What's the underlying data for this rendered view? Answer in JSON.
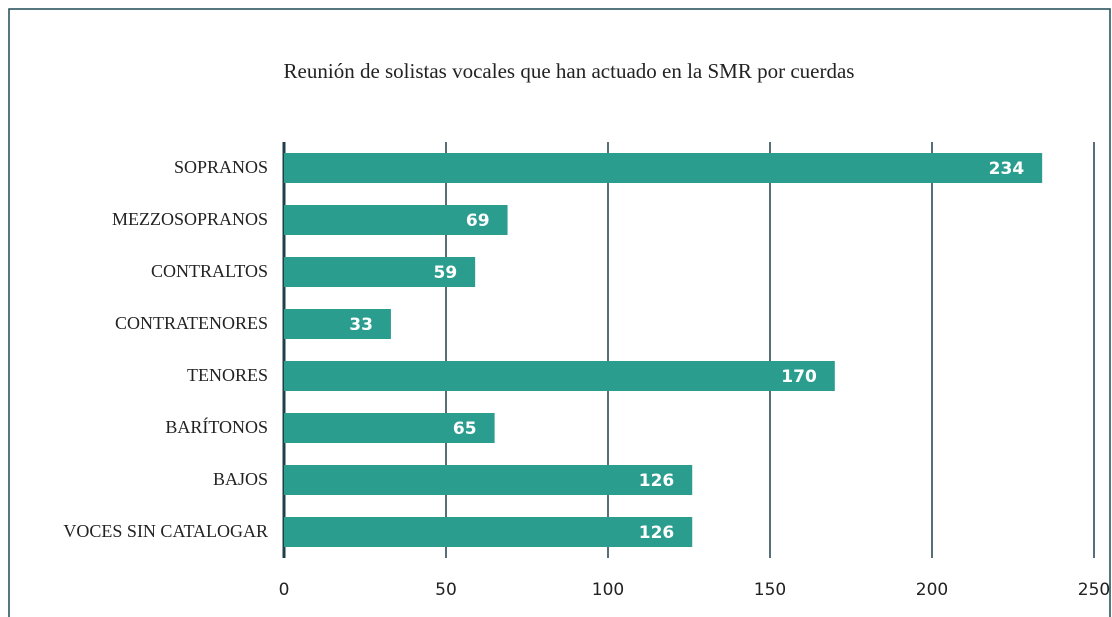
{
  "chart_data": {
    "type": "bar",
    "orientation": "horizontal",
    "title": "Reunión de solistas vocales que han actuado en la SMR por cuerdas",
    "categories": [
      "SOPRANOS",
      "MEZZOSOPRANOS",
      "CONTRALTOS",
      "CONTRATENORES",
      "TENORES",
      "BARÍTONOS",
      "BAJOS",
      "VOCES SIN CATALOGAR"
    ],
    "values": [
      234,
      69,
      59,
      33,
      170,
      65,
      126,
      126
    ],
    "color": "#2a9d8f",
    "xlim": [
      0,
      250
    ],
    "xticks": [
      0,
      50,
      100,
      150,
      200,
      250
    ],
    "grid": true
  }
}
